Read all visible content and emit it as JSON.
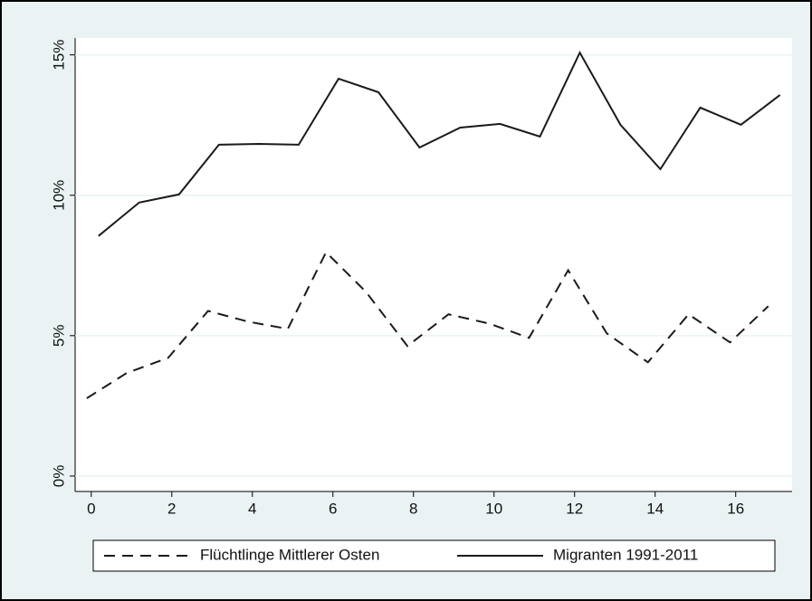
{
  "chart_data": {
    "type": "line",
    "xlim": [
      -0.4,
      17.4
    ],
    "xticks": [
      0,
      2,
      4,
      6,
      8,
      10,
      12,
      14,
      16
    ],
    "ylim": [
      -0.55,
      15.6
    ],
    "yticks": [
      {
        "value": 0,
        "label": "0%"
      },
      {
        "value": 5,
        "label": "5%"
      },
      {
        "value": 10,
        "label": "10%"
      },
      {
        "value": 15,
        "label": "15%"
      }
    ],
    "grid": true,
    "legend": "bottom",
    "series": [
      {
        "name": "Flüchtlinge Mittlerer Osten",
        "color": "#1a1a1a",
        "dash": "dashed",
        "x": [
          -0.11,
          0.88,
          1.91,
          2.9,
          3.89,
          4.88,
          5.83,
          6.82,
          7.85,
          8.87,
          9.88,
          10.87,
          11.84,
          12.8,
          13.82,
          14.83,
          15.86,
          16.81
        ],
        "values": [
          2.77,
          3.67,
          4.21,
          5.88,
          5.5,
          5.24,
          7.97,
          6.56,
          4.63,
          5.76,
          5.43,
          4.92,
          7.33,
          5.08,
          4.05,
          5.76,
          4.76,
          6.05
        ]
      },
      {
        "name": "Migranten 1991-2011",
        "color": "#1a1a1a",
        "dash": "solid",
        "x": [
          0.18,
          1.19,
          2.18,
          3.17,
          4.16,
          5.15,
          6.14,
          7.13,
          8.15,
          9.16,
          10.15,
          11.14,
          12.13,
          13.14,
          14.13,
          15.12,
          16.13,
          17.1
        ],
        "values": [
          8.55,
          9.74,
          10.03,
          11.8,
          11.83,
          11.8,
          14.15,
          13.67,
          11.7,
          12.41,
          12.54,
          12.09,
          15.08,
          12.51,
          10.93,
          13.12,
          12.51,
          13.57
        ]
      }
    ]
  }
}
